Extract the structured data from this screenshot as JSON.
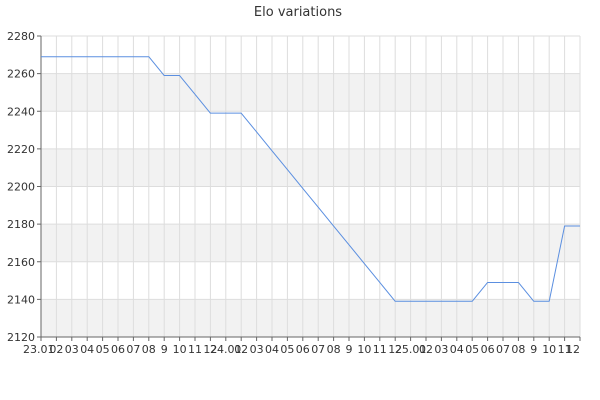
{
  "chart_data": {
    "type": "line",
    "title": "Elo variations",
    "xlabel": "",
    "ylabel": "",
    "ylim": [
      2120,
      2280
    ],
    "yticks": [
      2120,
      2140,
      2160,
      2180,
      2200,
      2220,
      2240,
      2260,
      2280
    ],
    "categories": [
      "23.01",
      "02",
      "03",
      "04",
      "05",
      "06",
      "07",
      "08",
      "9",
      "10",
      "11",
      "12",
      "24.01",
      "02",
      "03",
      "04",
      "05",
      "06",
      "07",
      "08",
      "9",
      "10",
      "11",
      "12",
      "25.01",
      "02",
      "03",
      "04",
      "05",
      "06",
      "07",
      "08",
      "9",
      "10",
      "11",
      "12"
    ],
    "values": [
      2269,
      2269,
      2269,
      2269,
      2269,
      2269,
      2269,
      2269,
      2259,
      2259,
      2249,
      2239,
      2239,
      2239,
      2229,
      2219,
      2209,
      2199,
      2189,
      2179,
      2169,
      2159,
      2149,
      2139,
      2139,
      2139,
      2139,
      2139,
      2139,
      2149,
      2149,
      2149,
      2139,
      2139,
      2179,
      2179
    ],
    "grid": true,
    "colors": {
      "line": "#5b8fe0",
      "band": "#f2f2f2",
      "grid": "#dddddd",
      "axis": "#666666"
    }
  }
}
